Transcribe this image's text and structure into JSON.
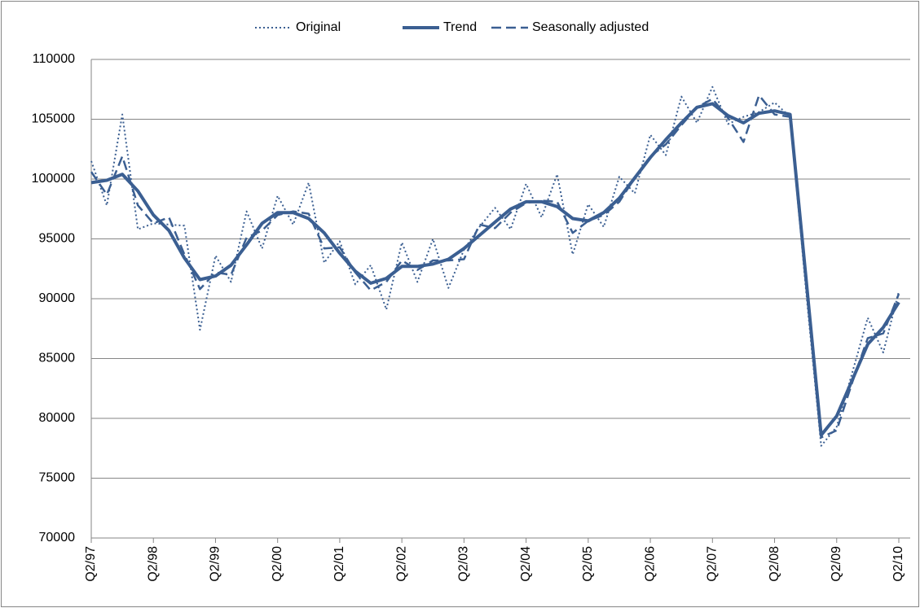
{
  "chart_data": {
    "type": "line",
    "categories": [
      "Q2/97",
      null,
      null,
      null,
      "Q2/98",
      null,
      null,
      null,
      "Q2/99",
      null,
      null,
      null,
      "Q2/00",
      null,
      null,
      null,
      "Q2/01",
      null,
      null,
      null,
      "Q2/02",
      null,
      null,
      null,
      "Q2/03",
      null,
      null,
      null,
      "Q2/04",
      null,
      null,
      null,
      "Q2/05",
      null,
      null,
      null,
      "Q2/06",
      null,
      null,
      null,
      "Q2/07",
      null,
      null,
      null,
      "Q2/08",
      null,
      null,
      null,
      "Q2/09",
      null,
      null,
      null,
      "Q2/10"
    ],
    "series": [
      {
        "name": "Original",
        "color": "#3b5f92",
        "style": "dotted",
        "values": [
          101500,
          97800,
          105400,
          95800,
          96300,
          96200,
          96100,
          87400,
          93600,
          91400,
          97300,
          94200,
          98600,
          96200,
          99700,
          93000,
          94800,
          91200,
          92800,
          89100,
          94700,
          91400,
          95000,
          90900,
          94100,
          96000,
          97600,
          95800,
          99600,
          96800,
          100400,
          93700,
          97900,
          96000,
          100200,
          98800,
          103700,
          102000,
          106900,
          104700,
          107700,
          104600,
          105200,
          105600,
          106400,
          105200,
          91000,
          77700,
          79300,
          83800,
          88400,
          85500,
          90600
        ]
      },
      {
        "name": "Trend",
        "color": "#3b5f92",
        "style": "solid",
        "values": [
          99700,
          99900,
          100400,
          99000,
          97000,
          95700,
          93400,
          91600,
          91900,
          92800,
          94500,
          96300,
          97200,
          97200,
          96700,
          95500,
          93800,
          92300,
          91300,
          91700,
          92700,
          92700,
          92900,
          93300,
          94200,
          95300,
          96400,
          97500,
          98100,
          98100,
          97700,
          96700,
          96500,
          97200,
          98400,
          100100,
          101800,
          103300,
          104700,
          106000,
          106300,
          105300,
          104700,
          105500,
          105700,
          105400,
          92000,
          78600,
          80200,
          83200,
          86200,
          87600,
          89700
        ]
      },
      {
        "name": "Seasonally adjusted",
        "color": "#3b5f92",
        "style": "dashed",
        "values": [
          100600,
          98700,
          101900,
          97800,
          96300,
          96800,
          93700,
          90800,
          92200,
          92000,
          95100,
          95700,
          97000,
          97300,
          97100,
          94200,
          94300,
          92200,
          90700,
          91400,
          93200,
          92400,
          93200,
          93200,
          93300,
          96200,
          95900,
          97200,
          98000,
          98200,
          98100,
          95500,
          96500,
          97000,
          98100,
          100100,
          101900,
          102900,
          104500,
          106000,
          106700,
          105100,
          103100,
          107000,
          105400,
          105200,
          91500,
          78400,
          79000,
          83000,
          86700,
          87100,
          90400
        ]
      }
    ],
    "ylim": [
      70000,
      110000
    ],
    "yticks": [
      70000,
      75000,
      80000,
      85000,
      90000,
      95000,
      100000,
      105000,
      110000
    ],
    "grid": true,
    "legend": "top"
  }
}
